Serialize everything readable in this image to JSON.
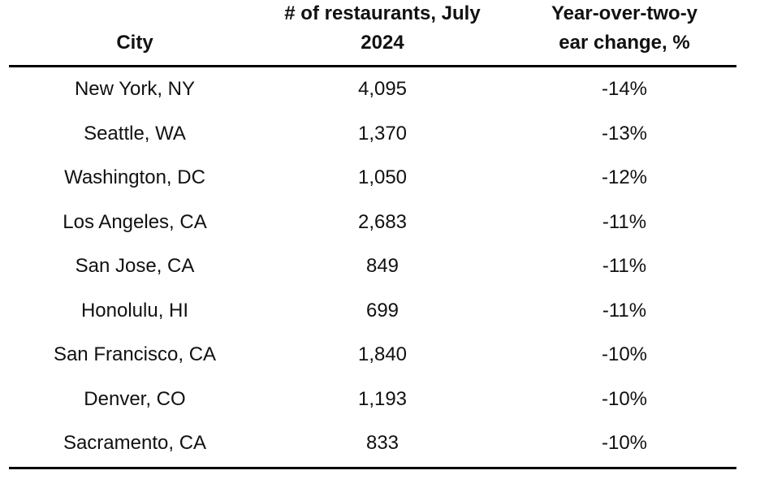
{
  "chart_data": {
    "type": "table",
    "columns": [
      "City",
      "# of restaurants, July 2024",
      "Year-over-two-year change, %"
    ],
    "rows": [
      {
        "city": "New York, NY",
        "count": "4,095",
        "change": "-14%"
      },
      {
        "city": "Seattle, WA",
        "count": "1,370",
        "change": "-13%"
      },
      {
        "city": "Washington, DC",
        "count": "1,050",
        "change": "-12%"
      },
      {
        "city": "Los Angeles, CA",
        "count": "2,683",
        "change": "-11%"
      },
      {
        "city": "San Jose, CA",
        "count": "849",
        "change": "-11%"
      },
      {
        "city": "Honolulu, HI",
        "count": "699",
        "change": "-11%"
      },
      {
        "city": "San Francisco, CA",
        "count": "1,840",
        "change": "-10%"
      },
      {
        "city": "Denver, CO",
        "count": "1,193",
        "change": "-10%"
      },
      {
        "city": "Sacramento, CA",
        "count": "833",
        "change": "-10%"
      }
    ]
  },
  "header": {
    "city": "City",
    "count_line1": "# of restaurants, July",
    "count_line2": "2024",
    "change_line1": "Year-over-two-y",
    "change_line2": "ear change, %"
  }
}
